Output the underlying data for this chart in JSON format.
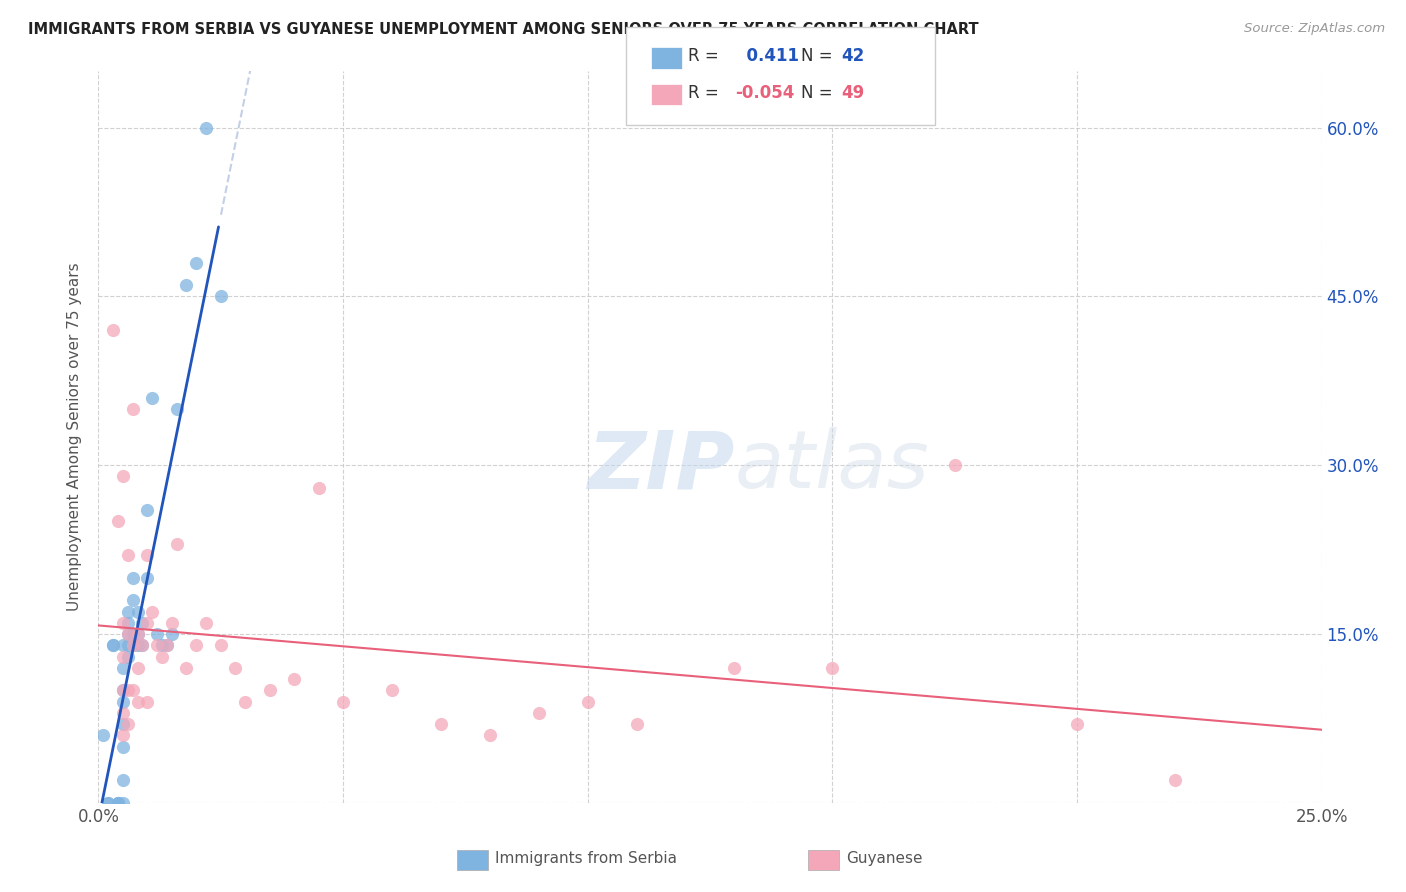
{
  "title": "IMMIGRANTS FROM SERBIA VS GUYANESE UNEMPLOYMENT AMONG SENIORS OVER 75 YEARS CORRELATION CHART",
  "source": "Source: ZipAtlas.com",
  "ylabel": "Unemployment Among Seniors over 75 years",
  "xlim": [
    0.0,
    0.25
  ],
  "ylim": [
    0.0,
    0.65
  ],
  "yticks": [
    0.0,
    0.15,
    0.3,
    0.45,
    0.6
  ],
  "xticks": [
    0.0,
    0.05,
    0.1,
    0.15,
    0.2,
    0.25
  ],
  "xtick_labels": [
    "0.0%",
    "",
    "",
    "",
    "",
    "25.0%"
  ],
  "right_ytick_labels": [
    "",
    "15.0%",
    "30.0%",
    "45.0%",
    "60.0%"
  ],
  "serbia_R": 0.411,
  "serbia_N": 42,
  "guyanese_R": -0.054,
  "guyanese_N": 49,
  "serbia_color": "#7fb3e0",
  "guyanese_color": "#f4a7b9",
  "serbia_line_color": "#2255bb",
  "guyanese_line_color": "#e8607a",
  "watermark_zip": "ZIP",
  "watermark_atlas": "atlas",
  "serbia_x": [
    0.001,
    0.002,
    0.002,
    0.003,
    0.003,
    0.004,
    0.004,
    0.004,
    0.005,
    0.005,
    0.005,
    0.005,
    0.005,
    0.005,
    0.005,
    0.005,
    0.006,
    0.006,
    0.006,
    0.006,
    0.006,
    0.007,
    0.007,
    0.007,
    0.007,
    0.008,
    0.008,
    0.008,
    0.009,
    0.009,
    0.01,
    0.01,
    0.011,
    0.012,
    0.013,
    0.014,
    0.015,
    0.016,
    0.018,
    0.02,
    0.022,
    0.025
  ],
  "serbia_y": [
    0.06,
    0.0,
    0.0,
    0.14,
    0.14,
    0.0,
    0.0,
    0.0,
    0.0,
    0.02,
    0.05,
    0.07,
    0.09,
    0.1,
    0.12,
    0.14,
    0.13,
    0.14,
    0.15,
    0.16,
    0.17,
    0.14,
    0.15,
    0.18,
    0.2,
    0.14,
    0.15,
    0.17,
    0.14,
    0.16,
    0.2,
    0.26,
    0.36,
    0.15,
    0.14,
    0.14,
    0.15,
    0.35,
    0.46,
    0.48,
    0.6,
    0.45
  ],
  "guyanese_x": [
    0.003,
    0.004,
    0.005,
    0.005,
    0.005,
    0.005,
    0.005,
    0.006,
    0.006,
    0.006,
    0.007,
    0.007,
    0.007,
    0.008,
    0.008,
    0.009,
    0.01,
    0.01,
    0.011,
    0.012,
    0.013,
    0.014,
    0.015,
    0.016,
    0.018,
    0.02,
    0.022,
    0.025,
    0.028,
    0.03,
    0.035,
    0.04,
    0.045,
    0.05,
    0.06,
    0.07,
    0.08,
    0.09,
    0.1,
    0.11,
    0.13,
    0.15,
    0.175,
    0.2,
    0.22,
    0.005,
    0.006,
    0.008,
    0.01
  ],
  "guyanese_y": [
    0.42,
    0.25,
    0.06,
    0.08,
    0.1,
    0.13,
    0.16,
    0.07,
    0.1,
    0.22,
    0.1,
    0.14,
    0.35,
    0.09,
    0.15,
    0.14,
    0.16,
    0.22,
    0.17,
    0.14,
    0.13,
    0.14,
    0.16,
    0.23,
    0.12,
    0.14,
    0.16,
    0.14,
    0.12,
    0.09,
    0.1,
    0.11,
    0.28,
    0.09,
    0.1,
    0.07,
    0.06,
    0.08,
    0.09,
    0.07,
    0.12,
    0.12,
    0.3,
    0.07,
    0.02,
    0.29,
    0.15,
    0.12,
    0.09
  ]
}
